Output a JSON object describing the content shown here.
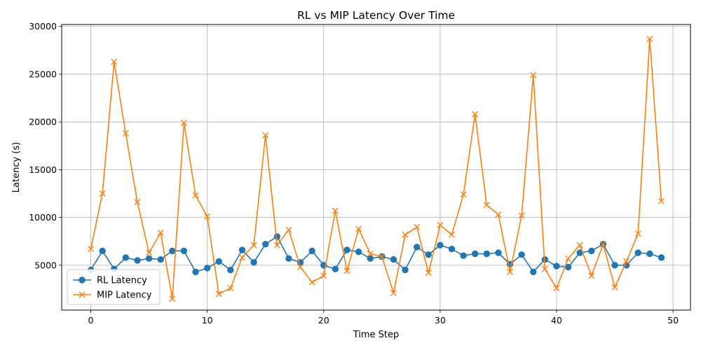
{
  "chart_data": {
    "type": "line",
    "title": "RL vs MIP Latency Over Time",
    "xlabel": "Time Step",
    "ylabel": "Latency (s)",
    "xlim": [
      -2.5,
      51.5
    ],
    "ylim": [
      300,
      30200
    ],
    "xticks": [
      0,
      10,
      20,
      30,
      40,
      50
    ],
    "yticks": [
      5000,
      10000,
      15000,
      20000,
      25000,
      30000
    ],
    "grid": true,
    "legend_position": "lower-left",
    "x": [
      0,
      1,
      2,
      3,
      4,
      5,
      6,
      7,
      8,
      9,
      10,
      11,
      12,
      13,
      14,
      15,
      16,
      17,
      18,
      19,
      20,
      21,
      22,
      23,
      24,
      25,
      26,
      27,
      28,
      29,
      30,
      31,
      32,
      33,
      34,
      35,
      36,
      37,
      38,
      39,
      40,
      41,
      42,
      43,
      44,
      45,
      46,
      47,
      48,
      49
    ],
    "series": [
      {
        "name": "RL Latency",
        "color": "#1f77b4",
        "marker": "circle",
        "values": [
          4500,
          6500,
          4600,
          5800,
          5500,
          5700,
          5600,
          6500,
          6500,
          4300,
          4700,
          5400,
          4500,
          6600,
          5300,
          7200,
          8000,
          5700,
          5300,
          6500,
          5000,
          4600,
          6600,
          6400,
          5700,
          5900,
          5600,
          4500,
          6900,
          6100,
          7100,
          6700,
          6000,
          6200,
          6200,
          6300,
          5100,
          6100,
          4300,
          5600,
          4900,
          4800,
          6300,
          6500,
          7200,
          5000,
          5000,
          6300,
          6200,
          5800
        ]
      },
      {
        "name": "MIP Latency",
        "color": "#ff7f0e",
        "marker": "x",
        "values": [
          6700,
          12500,
          26300,
          18800,
          11600,
          6300,
          8400,
          1500,
          19900,
          12300,
          10100,
          2000,
          2600,
          5800,
          7100,
          18600,
          7100,
          8700,
          4800,
          3200,
          3900,
          10700,
          4400,
          8800,
          6200,
          5900,
          2100,
          8200,
          9000,
          4200,
          9200,
          8200,
          12400,
          20800,
          11300,
          10300,
          4300,
          10200,
          24900,
          4600,
          2600,
          5700,
          7100,
          3900,
          7200,
          2700,
          5400,
          8300,
          28700,
          11700
        ]
      }
    ]
  }
}
